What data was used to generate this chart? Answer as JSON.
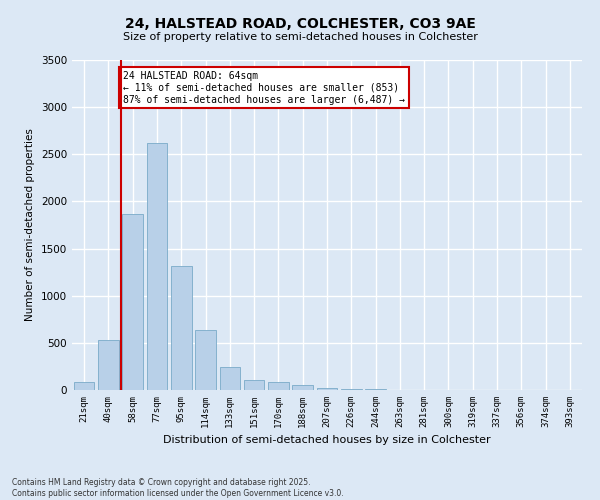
{
  "title1": "24, HALSTEAD ROAD, COLCHESTER, CO3 9AE",
  "title2": "Size of property relative to semi-detached houses in Colchester",
  "xlabel": "Distribution of semi-detached houses by size in Colchester",
  "ylabel": "Number of semi-detached properties",
  "footnote": "Contains HM Land Registry data © Crown copyright and database right 2025.\nContains public sector information licensed under the Open Government Licence v3.0.",
  "categories": [
    "21sqm",
    "40sqm",
    "58sqm",
    "77sqm",
    "95sqm",
    "114sqm",
    "133sqm",
    "151sqm",
    "170sqm",
    "188sqm",
    "207sqm",
    "226sqm",
    "244sqm",
    "263sqm",
    "281sqm",
    "300sqm",
    "319sqm",
    "337sqm",
    "356sqm",
    "374sqm",
    "393sqm"
  ],
  "values": [
    90,
    530,
    1870,
    2620,
    1310,
    640,
    240,
    110,
    80,
    50,
    25,
    15,
    10,
    5,
    3,
    2,
    1,
    1,
    0,
    0,
    0
  ],
  "bar_color": "#b8d0e8",
  "bar_edge_color": "#7aaac8",
  "background_color": "#dce8f5",
  "grid_color": "#ffffff",
  "vline_x": 1.5,
  "vline_color": "#cc0000",
  "annotation_title": "24 HALSTEAD ROAD: 64sqm",
  "annotation_line1": "← 11% of semi-detached houses are smaller (853)",
  "annotation_line2": "87% of semi-detached houses are larger (6,487) →",
  "annotation_box_color": "#ffffff",
  "annotation_box_edge": "#cc0000",
  "ylim": [
    0,
    3500
  ],
  "yticks": [
    0,
    500,
    1000,
    1500,
    2000,
    2500,
    3000,
    3500
  ]
}
